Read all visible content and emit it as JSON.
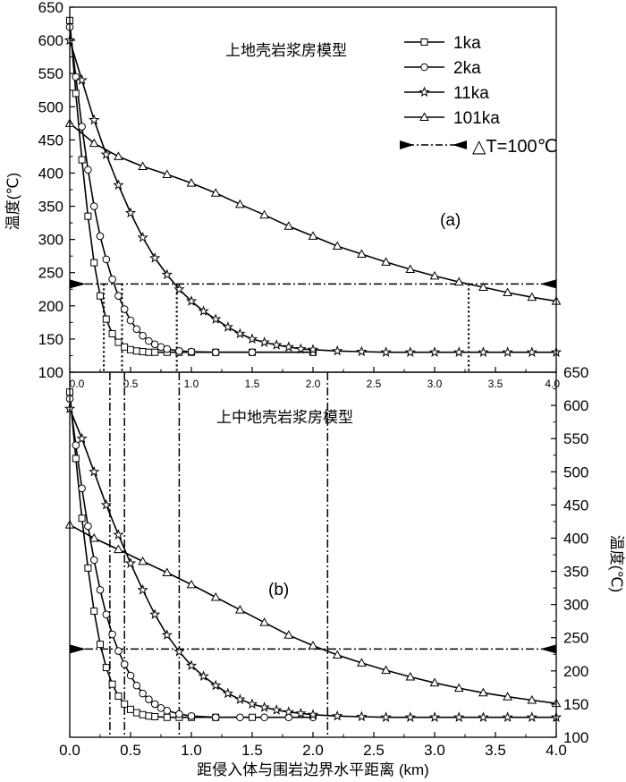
{
  "chart_data": [
    {
      "type": "line",
      "panel_label": "(a)",
      "annotation": "上地壳岩浆房模型",
      "ylabel": "温度(℃)",
      "xlim": [
        0,
        4.0
      ],
      "ylim": [
        100,
        650
      ],
      "x_ticks": [
        "0.0",
        "0.5",
        "1.0",
        "1.5",
        "2.0",
        "2.5",
        "3.0",
        "3.5",
        "4.0"
      ],
      "y_ticks": [
        "100",
        "150",
        "200",
        "250",
        "300",
        "350",
        "400",
        "450",
        "500",
        "550",
        "600",
        "650"
      ],
      "legend": {
        "position": "top-right",
        "entries": [
          {
            "label": "1ka",
            "marker": "square"
          },
          {
            "label": "2ka",
            "marker": "circle"
          },
          {
            "label": "11ka",
            "marker": "star"
          },
          {
            "label": "101ka",
            "marker": "triangle"
          },
          {
            "label": "△T=100℃",
            "marker": "dash-dot-arrows"
          }
        ]
      },
      "series": [
        {
          "name": "1ka",
          "marker": "square",
          "x": [
            0.0,
            0.05,
            0.1,
            0.15,
            0.2,
            0.25,
            0.3,
            0.35,
            0.4,
            0.45,
            0.5,
            0.55,
            0.6,
            0.65,
            0.7,
            0.8,
            0.9,
            1.0,
            1.2,
            1.5,
            2.0
          ],
          "y": [
            630,
            520,
            420,
            335,
            265,
            215,
            180,
            158,
            145,
            138,
            134,
            132,
            131,
            130,
            130,
            130,
            130,
            130,
            130,
            130,
            130
          ]
        },
        {
          "name": "2ka",
          "marker": "circle",
          "x": [
            0.0,
            0.05,
            0.1,
            0.15,
            0.2,
            0.25,
            0.3,
            0.35,
            0.4,
            0.45,
            0.5,
            0.55,
            0.6,
            0.65,
            0.7,
            0.75,
            0.8,
            0.9,
            1.0,
            1.2,
            1.5,
            2.0
          ],
          "y": [
            620,
            545,
            470,
            405,
            350,
            305,
            270,
            240,
            215,
            195,
            178,
            165,
            155,
            147,
            142,
            138,
            135,
            132,
            131,
            130,
            130,
            130
          ]
        },
        {
          "name": "11ka",
          "marker": "star",
          "x": [
            0.0,
            0.1,
            0.2,
            0.3,
            0.4,
            0.5,
            0.6,
            0.7,
            0.8,
            0.9,
            1.0,
            1.1,
            1.2,
            1.3,
            1.4,
            1.5,
            1.6,
            1.7,
            1.8,
            1.9,
            2.0,
            2.2,
            2.4,
            2.6,
            2.8,
            3.0,
            3.2,
            3.4,
            3.6,
            3.8,
            4.0
          ],
          "y": [
            600,
            540,
            480,
            428,
            382,
            340,
            303,
            272,
            247,
            225,
            207,
            192,
            180,
            168,
            158,
            150,
            145,
            141,
            138,
            135,
            134,
            132,
            131,
            130,
            130,
            130,
            130,
            130,
            130,
            130,
            130
          ]
        },
        {
          "name": "101ka",
          "marker": "triangle",
          "x": [
            0.0,
            0.2,
            0.4,
            0.6,
            0.8,
            1.0,
            1.2,
            1.4,
            1.6,
            1.8,
            2.0,
            2.2,
            2.4,
            2.6,
            2.8,
            3.0,
            3.2,
            3.4,
            3.6,
            3.8,
            4.0
          ],
          "y": [
            475,
            445,
            425,
            410,
            398,
            385,
            370,
            353,
            337,
            320,
            305,
            290,
            278,
            266,
            255,
            245,
            236,
            228,
            220,
            213,
            207
          ]
        }
      ],
      "reference_line": {
        "label": "△T=100℃",
        "y": 233
      },
      "drop_lines_x": [
        0.28,
        0.43,
        0.88,
        3.28
      ]
    },
    {
      "type": "line",
      "panel_label": "(b)",
      "annotation": "上中地壳岩浆房模型",
      "ylabel": "温度(℃)",
      "xlabel": "距侵入体与围岩边界水平距离 (km)",
      "xlim": [
        0,
        4.0
      ],
      "ylim": [
        100,
        650
      ],
      "x_ticks": [
        "0.0",
        "0.5",
        "1.0",
        "1.5",
        "2.0",
        "2.5",
        "3.0",
        "3.5",
        "4.0"
      ],
      "y_ticks": [
        "100",
        "150",
        "200",
        "250",
        "300",
        "350",
        "400",
        "450",
        "500",
        "550",
        "600",
        "650"
      ],
      "series": [
        {
          "name": "1ka",
          "marker": "square",
          "x": [
            0.0,
            0.05,
            0.1,
            0.15,
            0.2,
            0.25,
            0.3,
            0.35,
            0.4,
            0.45,
            0.5,
            0.55,
            0.6,
            0.65,
            0.7,
            0.8,
            0.9,
            1.0,
            1.2,
            1.5
          ],
          "y": [
            620,
            520,
            430,
            355,
            290,
            240,
            205,
            180,
            162,
            150,
            142,
            137,
            134,
            132,
            131,
            130,
            130,
            130,
            130,
            130
          ]
        },
        {
          "name": "2ka",
          "marker": "circle",
          "x": [
            0.0,
            0.05,
            0.1,
            0.15,
            0.2,
            0.25,
            0.3,
            0.35,
            0.4,
            0.45,
            0.5,
            0.55,
            0.6,
            0.65,
            0.7,
            0.75,
            0.8,
            0.9,
            1.0,
            1.2,
            1.4,
            1.6,
            1.8,
            2.0
          ],
          "y": [
            610,
            540,
            475,
            418,
            367,
            322,
            285,
            255,
            230,
            210,
            193,
            178,
            166,
            157,
            150,
            144,
            140,
            135,
            132,
            130,
            130,
            130,
            130,
            130
          ]
        },
        {
          "name": "11ka",
          "marker": "star",
          "x": [
            0.0,
            0.1,
            0.2,
            0.3,
            0.4,
            0.5,
            0.6,
            0.7,
            0.8,
            0.9,
            1.0,
            1.1,
            1.2,
            1.3,
            1.4,
            1.5,
            1.6,
            1.7,
            1.8,
            1.9,
            2.0,
            2.2,
            2.4,
            2.6,
            2.8,
            3.0,
            3.2,
            3.4,
            3.6,
            3.8,
            4.0
          ],
          "y": [
            595,
            550,
            500,
            450,
            405,
            362,
            322,
            285,
            254,
            229,
            208,
            192,
            178,
            166,
            157,
            150,
            145,
            141,
            138,
            136,
            134,
            132,
            131,
            130,
            130,
            130,
            130,
            130,
            130,
            130,
            130
          ]
        },
        {
          "name": "101ka",
          "marker": "triangle",
          "x": [
            0.0,
            0.2,
            0.4,
            0.6,
            0.8,
            1.0,
            1.2,
            1.4,
            1.6,
            1.8,
            2.0,
            2.2,
            2.4,
            2.6,
            2.8,
            3.0,
            3.2,
            3.4,
            3.6,
            3.8,
            4.0
          ],
          "y": [
            420,
            400,
            383,
            365,
            348,
            330,
            311,
            292,
            273,
            254,
            238,
            224,
            212,
            201,
            191,
            182,
            174,
            167,
            161,
            156,
            151
          ]
        }
      ],
      "reference_line": {
        "label": "△T=100℃",
        "y": 233
      },
      "drop_lines_x": [
        0.33,
        0.45,
        0.9,
        2.12
      ]
    }
  ]
}
